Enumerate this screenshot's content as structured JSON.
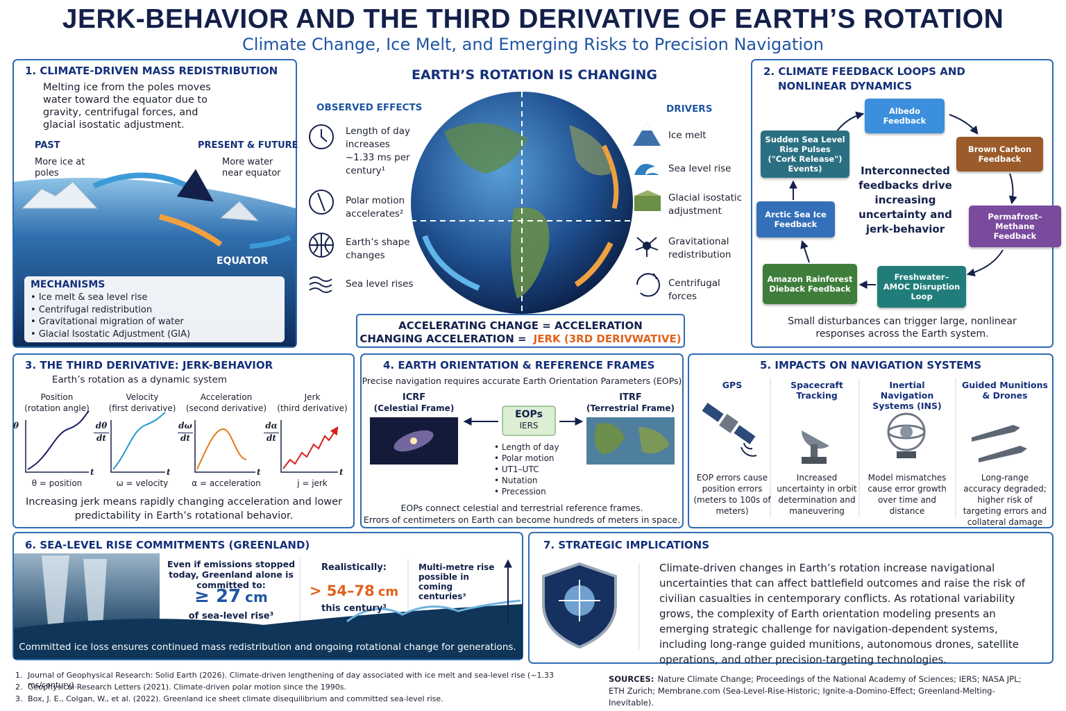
{
  "header": {
    "title": "JERK-BEHAVIOR AND THE THIRD DERIVATIVE OF EARTH’S ROTATION",
    "subtitle": "Climate Change, Ice Melt, and Emerging Risks to Precision Navigation"
  },
  "panel1": {
    "heading": "1. CLIMATE-DRIVEN MASS REDISTRIBUTION",
    "intro": "Melting ice from the poles moves water toward the equator due to gravity, centrifugal forces, and glacial isostatic adjustment.",
    "past_label": "PAST",
    "past_text": "More ice at poles",
    "future_label": "PRESENT & FUTURE",
    "future_text": "More water near equator",
    "equator": "EQUATOR",
    "mechanisms_title": "MECHANISMS",
    "mechanisms": [
      "Ice melt & sea level rise",
      "Centrifugal redistribution",
      "Gravitational migration of water",
      "Glacial Isostatic Adjustment (GIA)"
    ]
  },
  "center": {
    "title": "EARTH’S ROTATION IS CHANGING",
    "observed_title": "OBSERVED EFFECTS",
    "observed": [
      "Length of day increases ~1.33 ms per century¹",
      "Polar motion accelerates²",
      "Earth’s shape changes",
      "Sea level rises"
    ],
    "drivers_title": "DRIVERS",
    "drivers": [
      "Ice melt",
      "Sea level rise",
      "Glacial isostatic adjustment",
      "Gravitational redistribution",
      "Centrifugal forces"
    ],
    "eq1": "ACCELERATING CHANGE = ACCELERATION",
    "eq2": "CHANGING ACCELERATION =",
    "eq2_highlight": "JERK (3RD DERIVWATIVE)"
  },
  "panel2": {
    "heading": "2. CLIMATE FEEDBACK LOOPS AND NONLINEAR DYNAMICS",
    "nodes": [
      "Albedo Feedback",
      "Brown Carbon Feedback",
      "Permafrost–Methane Feedback",
      "Freshwater–AMOC Disruption Loop",
      "Amazon Rainforest Dieback Feedback",
      "Arctic Sea Ice Feedback",
      "Sudden Sea Level Rise Pulses (\"Cork Release\") Events)"
    ],
    "center_text": "Interconnected feedbacks drive increasing uncertainty and jerk-behavior",
    "footer": "Small disturbances can trigger large, nonlinear responses across the Earth system."
  },
  "panel3": {
    "heading": "3. THE THIRD DERIVATIVE: JERK-BEHAVIOR",
    "subtitle": "Earth’s rotation as a dynamic system",
    "t_axis": "t",
    "columns": [
      {
        "title": "Position",
        "sub": "(rotation angle)",
        "axis": [
          "θ"
        ],
        "caption": "θ = position"
      },
      {
        "title": "Velocity",
        "sub": "(first derivative)",
        "axis": [
          "dθ",
          "dt"
        ],
        "caption": "ω = velocity"
      },
      {
        "title": "Acceleration",
        "sub": "(second derivative)",
        "axis": [
          "dω",
          "dt"
        ],
        "caption": "α = acceleration"
      },
      {
        "title": "Jerk",
        "sub": "(third derivative)",
        "axis": [
          "dα",
          "dt"
        ],
        "caption": "j = jerk"
      }
    ],
    "footer": "Increasing jerk means rapidly changing acceleration and lower predictability in Earth’s rotational behavior."
  },
  "panel4": {
    "heading": "4. EARTH ORIENTATION & REFERENCE FRAMES",
    "subtitle": "Precise navigation requires accurate Earth Orientation Parameters (EOPs)",
    "icrf_title": "ICRF",
    "icrf_sub": "(Celestial Frame)",
    "itrf_title": "ITRF",
    "itrf_sub": "(Terrestrial Frame)",
    "eops_title": "EOPs",
    "eops_sub": "IERS",
    "list": [
      "Length of day",
      "Polar motion",
      "UT1–UTC",
      "Nutation",
      "Precession"
    ],
    "footer": [
      "EOPs connect celestial and terrestrial reference frames.",
      "Errors of centimeters on Earth can become hundreds of meters in space."
    ]
  },
  "panel5": {
    "heading": "5. IMPACTS ON NAVIGATION SYSTEMS",
    "columns": [
      {
        "title": "GPS",
        "text": "EOP errors cause position errors (meters to 100s of meters)"
      },
      {
        "title": "Spacecraft Tracking",
        "text": "Increased uncertainty in orbit determination and maneuvering"
      },
      {
        "title": "Inertial Navigation Systems (INS)",
        "text": "Model mismatches cause error growth over time and distance"
      },
      {
        "title": "Guided Munitions & Drones",
        "text": "Long-range accuracy degraded; higher risk of targeting errors and collateral damage"
      }
    ]
  },
  "panel6": {
    "heading": "6. SEA-LEVEL RISE COMMITMENTS (GREENLAND)",
    "committed_text": "Even if emissions stopped today, Greenland alone is committed to:",
    "committed_value": "≥ 27",
    "unit": "cm",
    "committed_caption": "of sea-level rise³",
    "realistic_label": "Realistically:",
    "realistic_value": "> 54–78",
    "realistic_caption": "this century³",
    "multi": "Multi-metre rise possible in coming centuries³",
    "footer": "Committed ice loss ensures continued mass redistribution and ongoing rotational change for generations."
  },
  "panel7": {
    "heading": "7. STRATEGIC IMPLICATIONS",
    "text": "Climate-driven changes in Earth’s rotation increase navigational uncertainties that can affect battlefield outcomes and raise the risk of civilian casualties in centemporary conflicts. As rotational variability grows, the complexity of Earth orientation modeling presents an emerging strategic challenge for navigation-dependent systems, including long-range guided munitions, autonomous drones, satellite operations, and other precision-targeting technologies."
  },
  "footnotes": [
    {
      "num": "1.",
      "text": "Journal of Geophysical Research: Solid Earth (2026). Climate-driven lengthening of day associated with ice melt and sea-level rise (~1.33 ms/century)."
    },
    {
      "num": "2.",
      "text": "Geophysical Research Letters (2021). Climate-driven polar motion since the 1990s."
    },
    {
      "num": "3.",
      "text": "Box, J. E., Colgan, W., et al. (2022). Greenland ice sheet climate disequilibrium and committed sea-level rise."
    }
  ],
  "sources": {
    "label": "SOURCES:",
    "text": "Nature Climate Change; Proceedings of the National Academy of Sciences; IERS; NASA JPL; ETH Zurich; Membrane.com (Sea-Level-Rise-Historic; Ignite-a-Domino-Effect; Greenland-Melting-Inevitable)."
  }
}
